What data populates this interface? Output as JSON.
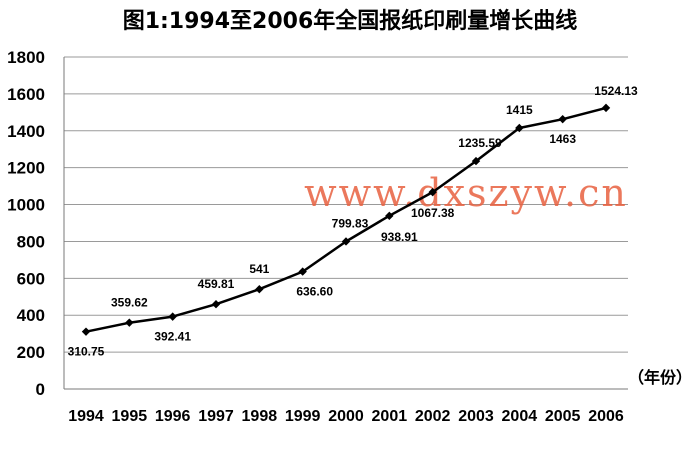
{
  "chart_data": {
    "type": "line",
    "title": "图1:1994至2006年全国报纸印刷量增长曲线",
    "xlabel": "（年份）",
    "ylabel": "",
    "ylim": [
      0,
      1800
    ],
    "yticks": [
      "0",
      "200",
      "400",
      "600",
      "800",
      "1000",
      "1200",
      "1400",
      "1600",
      "1800"
    ],
    "grid": true,
    "categories": [
      "1994",
      "1995",
      "1996",
      "1997",
      "1998",
      "1999",
      "2000",
      "2001",
      "2002",
      "2003",
      "2004",
      "2005",
      "2006"
    ],
    "series": [
      {
        "values": [
          310.75,
          359.62,
          392.41,
          459.81,
          541,
          636.6,
          799.83,
          938.91,
          1067.38,
          1235.59,
          1415,
          1463,
          1524.13
        ],
        "labels": [
          "310.75",
          "359.62",
          "392.41",
          "459.81",
          "541",
          "636.60",
          "799.83",
          "938.91",
          "1067.38",
          "1235.59",
          "1415",
          "1463",
          "1524.13"
        ],
        "color": "#000000"
      }
    ]
  },
  "watermark": {
    "text": "www.dxszyw.cn",
    "color": "#e8603f"
  }
}
